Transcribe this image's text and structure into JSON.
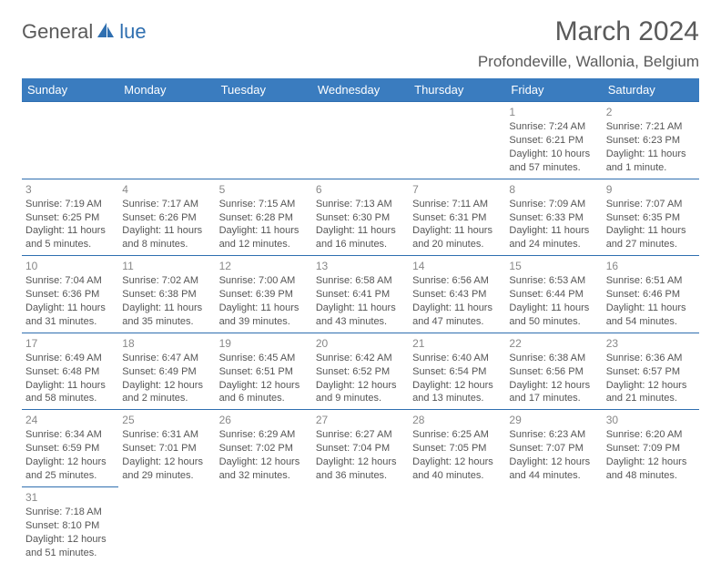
{
  "logo": {
    "part1": "General",
    "part2": "lue"
  },
  "title": "March 2024",
  "location": "Profondeville, Wallonia, Belgium",
  "colors": {
    "header_bg": "#3a7cbf",
    "header_text": "#ffffff",
    "border": "#2f6fb0",
    "text": "#555",
    "daynum": "#888"
  },
  "weekdays": [
    "Sunday",
    "Monday",
    "Tuesday",
    "Wednesday",
    "Thursday",
    "Friday",
    "Saturday"
  ],
  "weeks": [
    [
      null,
      null,
      null,
      null,
      null,
      {
        "n": "1",
        "sr": "Sunrise: 7:24 AM",
        "ss": "Sunset: 6:21 PM",
        "d1": "Daylight: 10 hours",
        "d2": "and 57 minutes."
      },
      {
        "n": "2",
        "sr": "Sunrise: 7:21 AM",
        "ss": "Sunset: 6:23 PM",
        "d1": "Daylight: 11 hours",
        "d2": "and 1 minute."
      }
    ],
    [
      {
        "n": "3",
        "sr": "Sunrise: 7:19 AM",
        "ss": "Sunset: 6:25 PM",
        "d1": "Daylight: 11 hours",
        "d2": "and 5 minutes."
      },
      {
        "n": "4",
        "sr": "Sunrise: 7:17 AM",
        "ss": "Sunset: 6:26 PM",
        "d1": "Daylight: 11 hours",
        "d2": "and 8 minutes."
      },
      {
        "n": "5",
        "sr": "Sunrise: 7:15 AM",
        "ss": "Sunset: 6:28 PM",
        "d1": "Daylight: 11 hours",
        "d2": "and 12 minutes."
      },
      {
        "n": "6",
        "sr": "Sunrise: 7:13 AM",
        "ss": "Sunset: 6:30 PM",
        "d1": "Daylight: 11 hours",
        "d2": "and 16 minutes."
      },
      {
        "n": "7",
        "sr": "Sunrise: 7:11 AM",
        "ss": "Sunset: 6:31 PM",
        "d1": "Daylight: 11 hours",
        "d2": "and 20 minutes."
      },
      {
        "n": "8",
        "sr": "Sunrise: 7:09 AM",
        "ss": "Sunset: 6:33 PM",
        "d1": "Daylight: 11 hours",
        "d2": "and 24 minutes."
      },
      {
        "n": "9",
        "sr": "Sunrise: 7:07 AM",
        "ss": "Sunset: 6:35 PM",
        "d1": "Daylight: 11 hours",
        "d2": "and 27 minutes."
      }
    ],
    [
      {
        "n": "10",
        "sr": "Sunrise: 7:04 AM",
        "ss": "Sunset: 6:36 PM",
        "d1": "Daylight: 11 hours",
        "d2": "and 31 minutes."
      },
      {
        "n": "11",
        "sr": "Sunrise: 7:02 AM",
        "ss": "Sunset: 6:38 PM",
        "d1": "Daylight: 11 hours",
        "d2": "and 35 minutes."
      },
      {
        "n": "12",
        "sr": "Sunrise: 7:00 AM",
        "ss": "Sunset: 6:39 PM",
        "d1": "Daylight: 11 hours",
        "d2": "and 39 minutes."
      },
      {
        "n": "13",
        "sr": "Sunrise: 6:58 AM",
        "ss": "Sunset: 6:41 PM",
        "d1": "Daylight: 11 hours",
        "d2": "and 43 minutes."
      },
      {
        "n": "14",
        "sr": "Sunrise: 6:56 AM",
        "ss": "Sunset: 6:43 PM",
        "d1": "Daylight: 11 hours",
        "d2": "and 47 minutes."
      },
      {
        "n": "15",
        "sr": "Sunrise: 6:53 AM",
        "ss": "Sunset: 6:44 PM",
        "d1": "Daylight: 11 hours",
        "d2": "and 50 minutes."
      },
      {
        "n": "16",
        "sr": "Sunrise: 6:51 AM",
        "ss": "Sunset: 6:46 PM",
        "d1": "Daylight: 11 hours",
        "d2": "and 54 minutes."
      }
    ],
    [
      {
        "n": "17",
        "sr": "Sunrise: 6:49 AM",
        "ss": "Sunset: 6:48 PM",
        "d1": "Daylight: 11 hours",
        "d2": "and 58 minutes."
      },
      {
        "n": "18",
        "sr": "Sunrise: 6:47 AM",
        "ss": "Sunset: 6:49 PM",
        "d1": "Daylight: 12 hours",
        "d2": "and 2 minutes."
      },
      {
        "n": "19",
        "sr": "Sunrise: 6:45 AM",
        "ss": "Sunset: 6:51 PM",
        "d1": "Daylight: 12 hours",
        "d2": "and 6 minutes."
      },
      {
        "n": "20",
        "sr": "Sunrise: 6:42 AM",
        "ss": "Sunset: 6:52 PM",
        "d1": "Daylight: 12 hours",
        "d2": "and 9 minutes."
      },
      {
        "n": "21",
        "sr": "Sunrise: 6:40 AM",
        "ss": "Sunset: 6:54 PM",
        "d1": "Daylight: 12 hours",
        "d2": "and 13 minutes."
      },
      {
        "n": "22",
        "sr": "Sunrise: 6:38 AM",
        "ss": "Sunset: 6:56 PM",
        "d1": "Daylight: 12 hours",
        "d2": "and 17 minutes."
      },
      {
        "n": "23",
        "sr": "Sunrise: 6:36 AM",
        "ss": "Sunset: 6:57 PM",
        "d1": "Daylight: 12 hours",
        "d2": "and 21 minutes."
      }
    ],
    [
      {
        "n": "24",
        "sr": "Sunrise: 6:34 AM",
        "ss": "Sunset: 6:59 PM",
        "d1": "Daylight: 12 hours",
        "d2": "and 25 minutes."
      },
      {
        "n": "25",
        "sr": "Sunrise: 6:31 AM",
        "ss": "Sunset: 7:01 PM",
        "d1": "Daylight: 12 hours",
        "d2": "and 29 minutes."
      },
      {
        "n": "26",
        "sr": "Sunrise: 6:29 AM",
        "ss": "Sunset: 7:02 PM",
        "d1": "Daylight: 12 hours",
        "d2": "and 32 minutes."
      },
      {
        "n": "27",
        "sr": "Sunrise: 6:27 AM",
        "ss": "Sunset: 7:04 PM",
        "d1": "Daylight: 12 hours",
        "d2": "and 36 minutes."
      },
      {
        "n": "28",
        "sr": "Sunrise: 6:25 AM",
        "ss": "Sunset: 7:05 PM",
        "d1": "Daylight: 12 hours",
        "d2": "and 40 minutes."
      },
      {
        "n": "29",
        "sr": "Sunrise: 6:23 AM",
        "ss": "Sunset: 7:07 PM",
        "d1": "Daylight: 12 hours",
        "d2": "and 44 minutes."
      },
      {
        "n": "30",
        "sr": "Sunrise: 6:20 AM",
        "ss": "Sunset: 7:09 PM",
        "d1": "Daylight: 12 hours",
        "d2": "and 48 minutes."
      }
    ],
    [
      {
        "n": "31",
        "sr": "Sunrise: 7:18 AM",
        "ss": "Sunset: 8:10 PM",
        "d1": "Daylight: 12 hours",
        "d2": "and 51 minutes."
      },
      null,
      null,
      null,
      null,
      null,
      null
    ]
  ]
}
